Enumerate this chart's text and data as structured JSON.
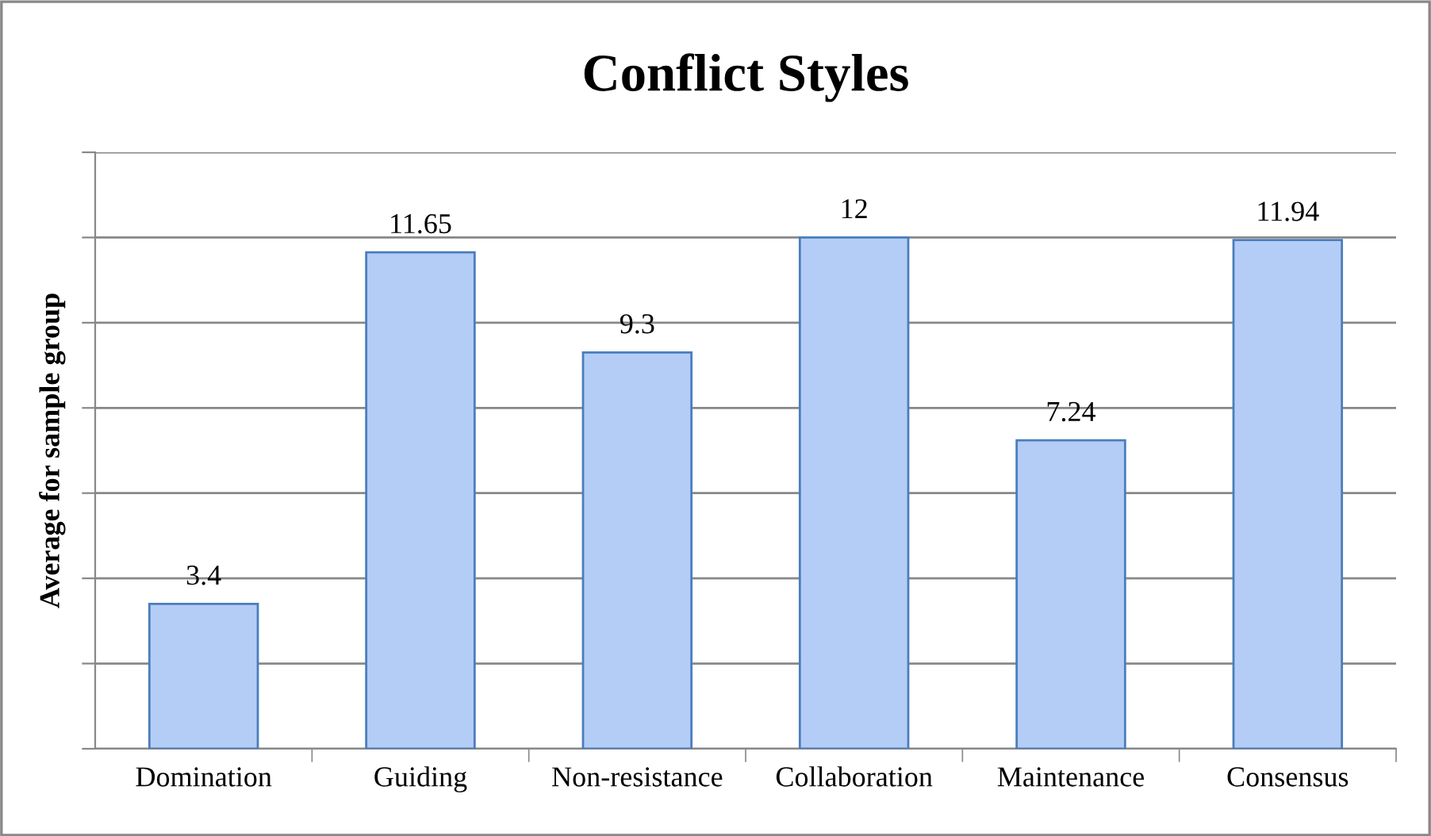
{
  "chart_data": {
    "type": "bar",
    "title": "Conflict Styles",
    "ylabel": "Average for sample group",
    "categories": [
      "Domination",
      "Guiding",
      "Non-resistance",
      "Collaboration",
      "Maintenance",
      "Consensus"
    ],
    "values": [
      3.4,
      11.65,
      9.3,
      12,
      7.24,
      11.94
    ],
    "color": "#b4cdf7",
    "ylim": [
      0,
      14
    ],
    "yticks": [
      {
        "value": 0,
        "label": null
      },
      {
        "value": 2,
        "label": null
      },
      {
        "value": 4,
        "label": null
      },
      {
        "value": 6,
        "label": null
      },
      {
        "value": 8,
        "label": null
      },
      {
        "value": 10,
        "label": null
      },
      {
        "value": 12,
        "label": null
      },
      {
        "value": 14,
        "label": null
      }
    ],
    "grid": "y",
    "data_labels": true
  }
}
